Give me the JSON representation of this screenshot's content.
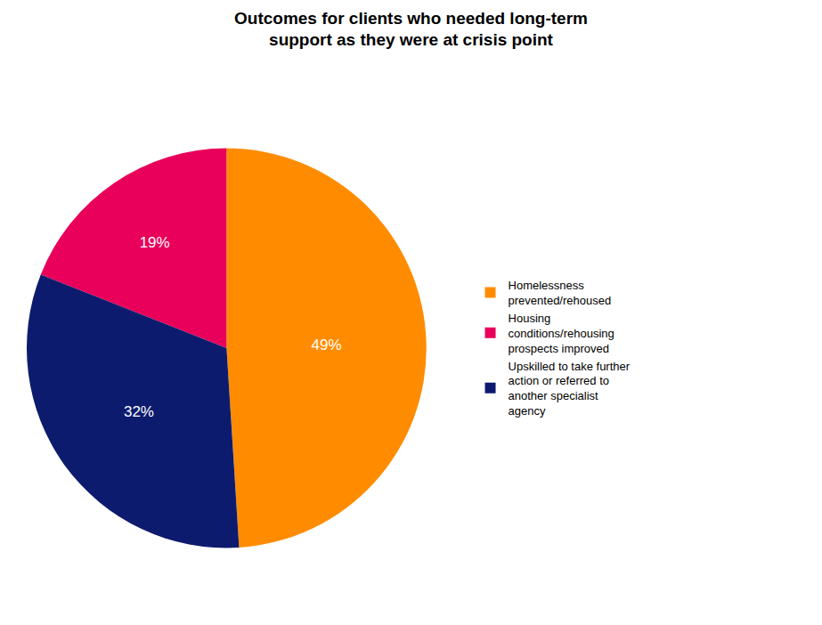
{
  "chart_data": {
    "type": "pie",
    "title": "Outcomes for clients who needed long-term\nsupport as they were at crisis point",
    "categories": [
      "Homelessness\nprevented/rehoused",
      "Housing\nconditions/rehousing\nprospects improved",
      "Upskilled to take further\naction or referred to\nanother specialist\nagency"
    ],
    "values": [
      49,
      19,
      32
    ],
    "value_labels": [
      "49%",
      "19%",
      "32%"
    ],
    "data_labels": true,
    "colors": [
      "#FF8C00",
      "#E8005A",
      "#0D1B6E"
    ],
    "legend": "right"
  }
}
